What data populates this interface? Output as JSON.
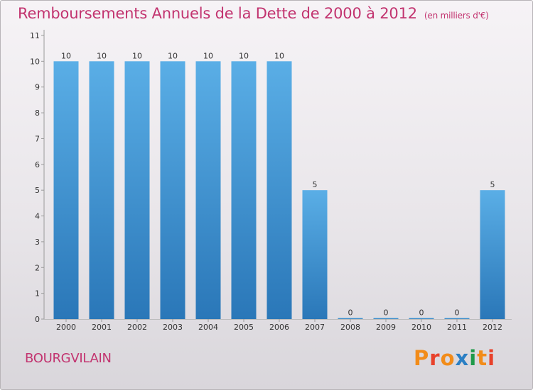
{
  "header": {
    "title": "Remboursements Annuels de la Dette de 2000 à 2012",
    "unit": "(en milliers d'€)"
  },
  "footer": {
    "commune": "BOURGVILAIN",
    "brand": "Proxiti"
  },
  "colors": {
    "title": "#c2336f",
    "bar_top": "#5aaee6",
    "bar_bottom": "#2a77b8",
    "brand_letters": [
      "#f28c1a",
      "#e8412b",
      "#f28c1a",
      "#2b7fc4",
      "#1f9a4a",
      "#f28c1a",
      "#e8412b"
    ]
  },
  "chart_data": {
    "type": "bar",
    "title": "Remboursements Annuels de la Dette de 2000 à 2012",
    "subtitle": "(en milliers d'€)",
    "categories": [
      "2000",
      "2001",
      "2002",
      "2003",
      "2004",
      "2005",
      "2006",
      "2007",
      "2008",
      "2009",
      "2010",
      "2011",
      "2012"
    ],
    "values": [
      10,
      10,
      10,
      10,
      10,
      10,
      10,
      5,
      0,
      0,
      0,
      0,
      5
    ],
    "data_labels": [
      "10",
      "10",
      "10",
      "10",
      "10",
      "10",
      "10",
      "5",
      "0",
      "0",
      "0",
      "0",
      "5"
    ],
    "ylim": [
      0,
      11
    ],
    "yticks": [
      0,
      1,
      2,
      3,
      4,
      5,
      6,
      7,
      8,
      9,
      10,
      11
    ],
    "xlabel": "",
    "ylabel": "",
    "grid": false,
    "legend": "none"
  }
}
